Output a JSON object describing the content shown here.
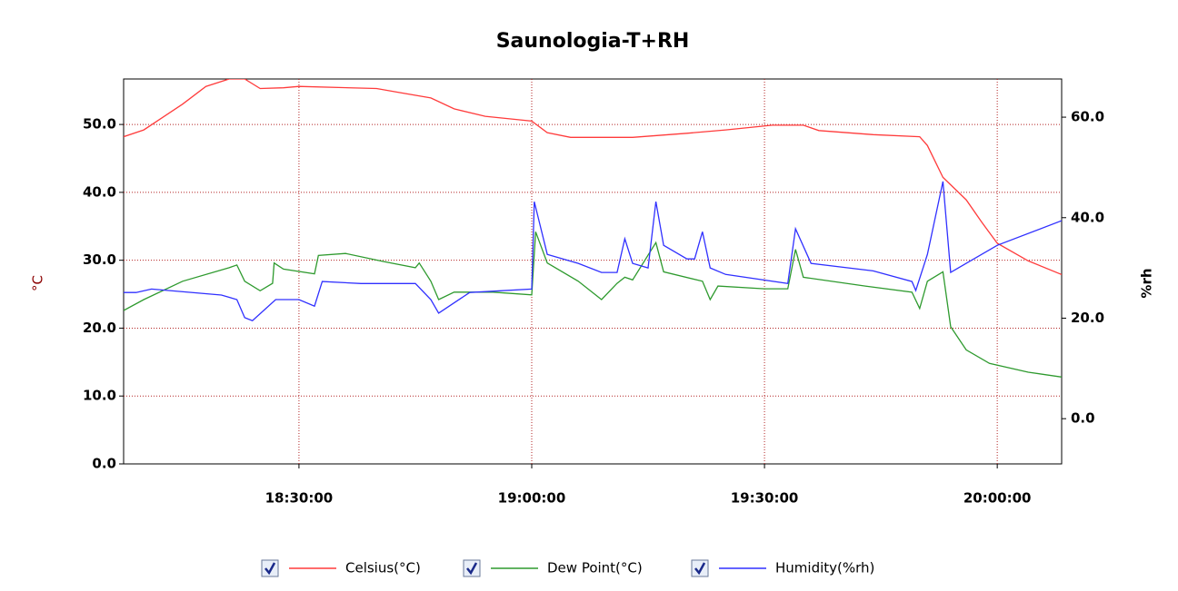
{
  "chart_data": {
    "type": "line",
    "title": "Saunologia-T+RH",
    "ylabel": "°C",
    "y2label": "%rh",
    "grid": true,
    "legend": "bottom",
    "xlim": [
      "18:07:24",
      "20:08:18"
    ],
    "xticks": [
      "18:30:00",
      "19:00:00",
      "19:30:00",
      "20:00:00"
    ],
    "ylim": [
      0,
      56.7
    ],
    "yticks": [
      {
        "value": 0,
        "label": "0.0"
      },
      {
        "value": 10,
        "label": "10.0"
      },
      {
        "value": 20,
        "label": "20.0"
      },
      {
        "value": 30,
        "label": "30.0"
      },
      {
        "value": 40,
        "label": "40.0"
      },
      {
        "value": 50,
        "label": "50.0"
      }
    ],
    "y2lim": [
      -9.0,
      67.6
    ],
    "y2ticks": [
      {
        "value": 0,
        "label": "0.0"
      },
      {
        "value": 20,
        "label": "20.0"
      },
      {
        "value": 40,
        "label": "40.0"
      },
      {
        "value": 60,
        "label": "60.0"
      }
    ],
    "series": [
      {
        "name": "Celsius(°C)",
        "color": "#ff3b3b",
        "x": [
          "18:07:24",
          "18:10:00",
          "18:15:00",
          "18:18:00",
          "18:21:00",
          "18:23:00",
          "18:25:00",
          "18:28:00",
          "18:30:00",
          "18:40:00",
          "18:43:00",
          "18:47:00",
          "18:50:00",
          "18:54:00",
          "19:00:00",
          "19:02:00",
          "19:05:00",
          "19:13:00",
          "19:20:00",
          "19:25:00",
          "19:31:00",
          "19:35:00",
          "19:37:00",
          "19:44:00",
          "19:50:00",
          "19:51:00",
          "19:53:00",
          "19:56:00",
          "19:58:00",
          "20:00:00",
          "20:04:00",
          "20:08:18"
        ],
        "values": [
          48.2,
          49.2,
          53.0,
          55.6,
          56.7,
          56.7,
          55.3,
          55.4,
          55.6,
          55.3,
          54.7,
          53.9,
          52.3,
          51.2,
          50.5,
          48.8,
          48.1,
          48.1,
          48.7,
          49.2,
          49.9,
          49.9,
          49.1,
          48.5,
          48.2,
          46.9,
          42.2,
          38.9,
          35.6,
          32.5,
          29.9,
          27.9
        ]
      },
      {
        "name": "Dew Point(°C)",
        "color": "#2e9a2e",
        "x": [
          "18:07:24",
          "18:10:00",
          "18:15:00",
          "18:21:00",
          "18:22:00",
          "18:23:00",
          "18:25:00",
          "18:26:36",
          "18:26:48",
          "18:28:00",
          "18:32:00",
          "18:32:30",
          "18:36:00",
          "18:41:00",
          "18:45:00",
          "18:45:30",
          "18:47:00",
          "18:48:00",
          "18:50:00",
          "18:55:00",
          "19:00:00",
          "19:00:30",
          "19:02:00",
          "19:06:00",
          "19:09:00",
          "19:11:00",
          "19:12:00",
          "19:13:00",
          "19:16:00",
          "19:17:00",
          "19:22:00",
          "19:23:00",
          "19:24:00",
          "19:30:00",
          "19:33:00",
          "19:34:00",
          "19:35:00",
          "19:43:00",
          "19:49:00",
          "19:50:00",
          "19:51:00",
          "19:53:00",
          "19:54:00",
          "19:56:00",
          "19:59:00",
          "20:04:00",
          "20:08:18"
        ],
        "values": [
          22.6,
          24.2,
          26.9,
          28.9,
          29.3,
          26.9,
          25.5,
          26.6,
          29.6,
          28.7,
          28.0,
          30.7,
          31.0,
          29.8,
          28.9,
          29.6,
          26.9,
          24.2,
          25.3,
          25.3,
          24.9,
          34.2,
          29.6,
          26.9,
          24.2,
          26.6,
          27.5,
          27.1,
          32.6,
          28.3,
          26.9,
          24.2,
          26.2,
          25.8,
          25.8,
          31.6,
          27.5,
          26.2,
          25.3,
          22.9,
          26.9,
          28.3,
          20.2,
          16.8,
          14.8,
          13.5,
          12.8
        ]
      },
      {
        "name": "Humidity(%rh)",
        "color": "#3030ff",
        "axis": "y2",
        "x": [
          "18:07:24",
          "18:09:00",
          "18:11:00",
          "18:20:00",
          "18:22:00",
          "18:23:00",
          "18:24:00",
          "18:27:00",
          "18:30:00",
          "18:32:00",
          "18:33:00",
          "18:38:00",
          "18:45:00",
          "18:47:00",
          "18:48:00",
          "18:52:00",
          "19:00:00",
          "19:00:20",
          "19:02:00",
          "19:06:00",
          "19:09:00",
          "19:11:00",
          "19:12:00",
          "19:13:00",
          "19:15:00",
          "19:16:00",
          "19:17:00",
          "19:20:00",
          "19:21:00",
          "19:22:00",
          "19:23:00",
          "19:25:00",
          "19:33:00",
          "19:34:00",
          "19:36:00",
          "19:44:00",
          "19:49:00",
          "19:49:30",
          "19:51:00",
          "19:53:00",
          "19:54:00",
          "19:56:00",
          "20:00:00",
          "20:08:18"
        ],
        "values": [
          25.1,
          25.1,
          25.8,
          24.6,
          23.7,
          20.1,
          19.5,
          23.7,
          23.7,
          22.4,
          27.3,
          26.9,
          26.9,
          23.7,
          21.0,
          25.1,
          25.8,
          43.2,
          32.7,
          30.9,
          29.1,
          29.1,
          35.8,
          30.9,
          30.0,
          43.2,
          34.5,
          31.8,
          31.8,
          37.2,
          30.0,
          28.7,
          26.9,
          37.8,
          30.9,
          29.4,
          27.3,
          25.5,
          32.7,
          47.2,
          29.1,
          30.9,
          34.5,
          39.4
        ]
      }
    ]
  }
}
